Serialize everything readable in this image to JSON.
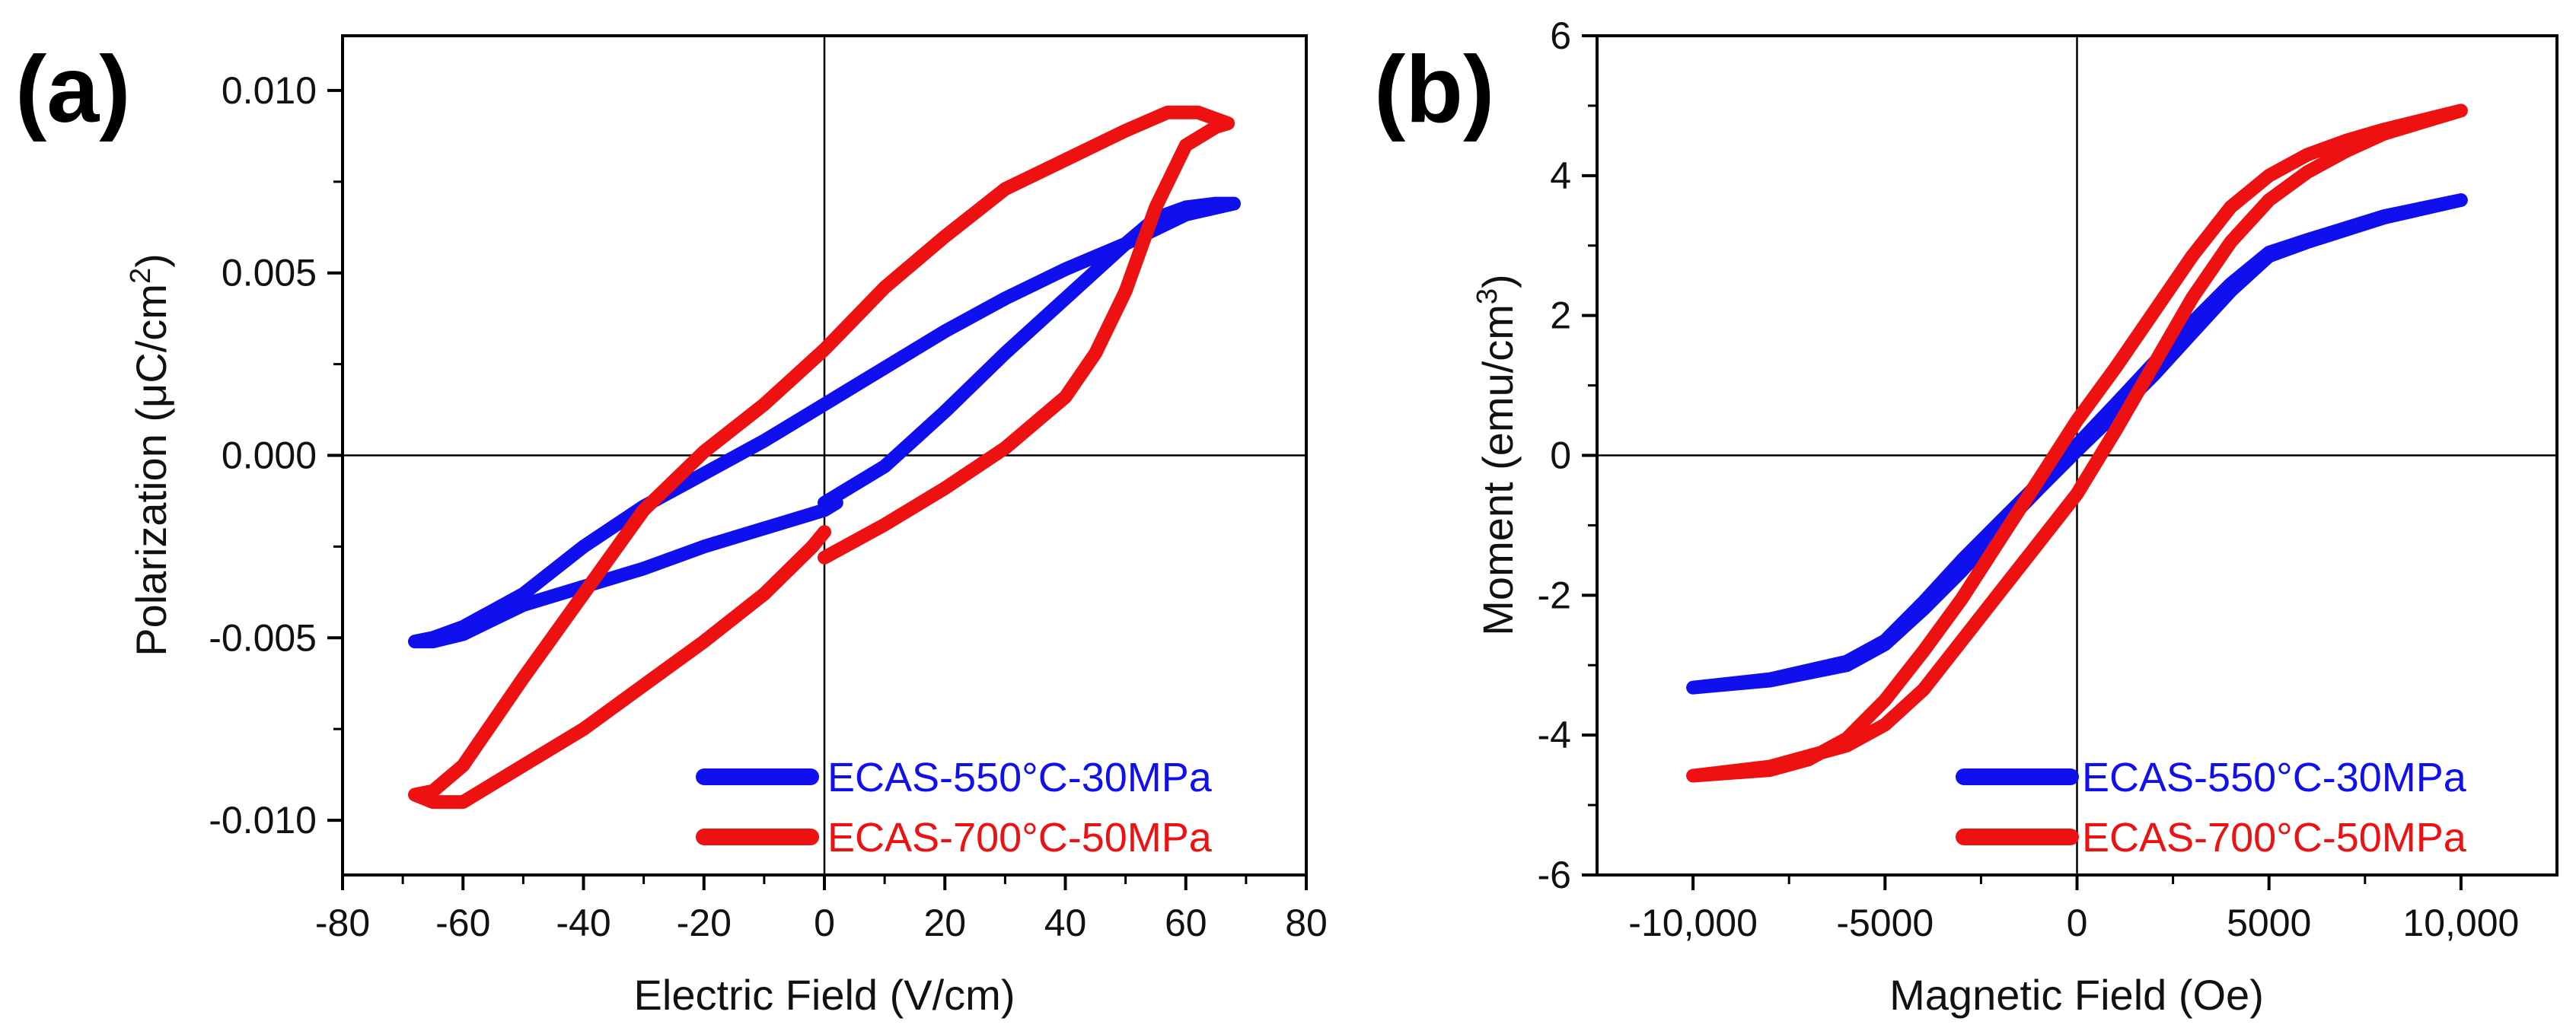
{
  "chart_data": [
    {
      "panel_label": "(a)",
      "type": "line",
      "xlabel": "Electric Field (V/cm)",
      "ylabel": {
        "prefix": "Polarization (μC/cm",
        "sup": "2",
        "suffix": ")"
      },
      "xlim": [
        -80,
        80
      ],
      "ylim": [
        -0.0115,
        0.0115
      ],
      "xticks": [
        -80,
        -60,
        -40,
        -20,
        0,
        20,
        40,
        60,
        80
      ],
      "xtick_labels": [
        "-80",
        "-60",
        "-40",
        "-20",
        "0",
        "20",
        "40",
        "60",
        "80"
      ],
      "yticks": [
        -0.01,
        -0.005,
        0,
        0.005,
        0.01
      ],
      "ytick_labels": [
        "-0.010",
        "-0.005",
        "0.000",
        "0.005",
        "0.010"
      ],
      "legend_position": "bottom-right",
      "series": [
        {
          "name": "ECAS-550°C-30MPa",
          "color": "#1010ee",
          "x": [
            0,
            10,
            20,
            30,
            40,
            50,
            55,
            60,
            65,
            68,
            60,
            50,
            40,
            30,
            20,
            10,
            0,
            -10,
            -20,
            -30,
            -40,
            -50,
            -60,
            -65,
            -68,
            -65,
            -60,
            -55,
            -50,
            -40,
            -30,
            -20,
            -10,
            -2,
            0,
            2
          ],
          "y": [
            -0.0013,
            -0.0003,
            0.0012,
            0.0028,
            0.0043,
            0.0058,
            0.0065,
            0.0068,
            0.0069,
            0.0069,
            0.0066,
            0.0058,
            0.0051,
            0.0043,
            0.0034,
            0.0024,
            0.0014,
            0.0004,
            -0.0005,
            -0.0014,
            -0.0025,
            -0.0038,
            -0.0047,
            -0.005,
            -0.0051,
            -0.0051,
            -0.0049,
            -0.0045,
            -0.0041,
            -0.0036,
            -0.0031,
            -0.0025,
            -0.002,
            -0.0016,
            -0.0015,
            -0.0013
          ]
        },
        {
          "name": "ECAS-700°C-50MPa",
          "color": "#ee1111",
          "x": [
            0,
            10,
            20,
            30,
            40,
            45,
            50,
            55,
            60,
            65,
            67,
            62,
            57,
            50,
            40,
            30,
            20,
            10,
            0,
            -10,
            -20,
            -30,
            -40,
            -50,
            -60,
            -65,
            -68,
            -65,
            -60,
            -55,
            -50,
            -40,
            -30,
            -20,
            -10,
            -2,
            0
          ],
          "y": [
            -0.0028,
            -0.0019,
            -0.0009,
            0.0002,
            0.0016,
            0.0028,
            0.0045,
            0.0068,
            0.0085,
            0.009,
            0.0091,
            0.0094,
            0.0094,
            0.0089,
            0.0081,
            0.0073,
            0.006,
            0.0046,
            0.0029,
            0.0014,
            0.0001,
            -0.0015,
            -0.0038,
            -0.0061,
            -0.0085,
            -0.0092,
            -0.0093,
            -0.0095,
            -0.0095,
            -0.009,
            -0.0085,
            -0.0075,
            -0.0063,
            -0.0051,
            -0.0038,
            -0.0025,
            -0.0021
          ]
        }
      ]
    },
    {
      "panel_label": "(b)",
      "type": "line",
      "xlabel": "Magnetic Field (Oe)",
      "ylabel": {
        "prefix": "Moment (emu/cm",
        "sup": "3",
        "suffix": ")"
      },
      "xlim": [
        -12500,
        12500
      ],
      "ylim": [
        -6,
        6
      ],
      "xticks": [
        -10000,
        -5000,
        0,
        5000,
        10000
      ],
      "xtick_labels": [
        "-10,000",
        "-5000",
        "0",
        "5000",
        "10,000"
      ],
      "yticks": [
        -6,
        -4,
        -2,
        0,
        2,
        4,
        6
      ],
      "ytick_labels": [
        "-6",
        "-4",
        "-2",
        "0",
        "2",
        "4",
        "6"
      ],
      "legend_position": "bottom-right",
      "series": [
        {
          "name": "ECAS-550°C-30MPa",
          "color": "#1010ee",
          "x": [
            -10000,
            -8000,
            -6000,
            -5000,
            -4000,
            -3000,
            -2000,
            -1000,
            0,
            1000,
            2000,
            3000,
            4000,
            5000,
            6000,
            8000,
            10000,
            8000,
            6000,
            5000,
            4000,
            3000,
            2000,
            1000,
            0,
            -1000,
            -2000,
            -3000,
            -4000,
            -5000,
            -6000,
            -8000,
            -10000
          ],
          "y": [
            -3.32,
            -3.22,
            -3.0,
            -2.7,
            -2.2,
            -1.65,
            -1.05,
            -0.48,
            0.07,
            0.6,
            1.15,
            1.75,
            2.35,
            2.85,
            3.05,
            3.4,
            3.65,
            3.42,
            3.08,
            2.9,
            2.45,
            1.9,
            1.32,
            0.73,
            0.15,
            -0.4,
            -0.95,
            -1.5,
            -2.1,
            -2.65,
            -2.95,
            -3.2,
            -3.32
          ]
        },
        {
          "name": "ECAS-700°C-50MPa",
          "color": "#ee1111",
          "x": [
            -10000,
            -8000,
            -6000,
            -5000,
            -4000,
            -3000,
            -2000,
            -1000,
            0,
            1000,
            2000,
            3000,
            4000,
            5000,
            6000,
            7000,
            8000,
            10000,
            8000,
            7000,
            6000,
            5000,
            4000,
            3000,
            2000,
            1000,
            0,
            -1000,
            -2000,
            -3000,
            -4000,
            -5000,
            -6000,
            -7000,
            -8000,
            -10000
          ],
          "y": [
            -4.58,
            -4.45,
            -4.15,
            -3.85,
            -3.35,
            -2.65,
            -1.95,
            -1.25,
            -0.55,
            0.35,
            1.3,
            2.25,
            3.05,
            3.65,
            4.05,
            4.35,
            4.6,
            4.93,
            4.66,
            4.5,
            4.3,
            4.0,
            3.55,
            2.85,
            2.05,
            1.25,
            0.5,
            -0.35,
            -1.2,
            -2.05,
            -2.8,
            -3.5,
            -4.05,
            -4.35,
            -4.5,
            -4.58
          ]
        }
      ]
    }
  ]
}
